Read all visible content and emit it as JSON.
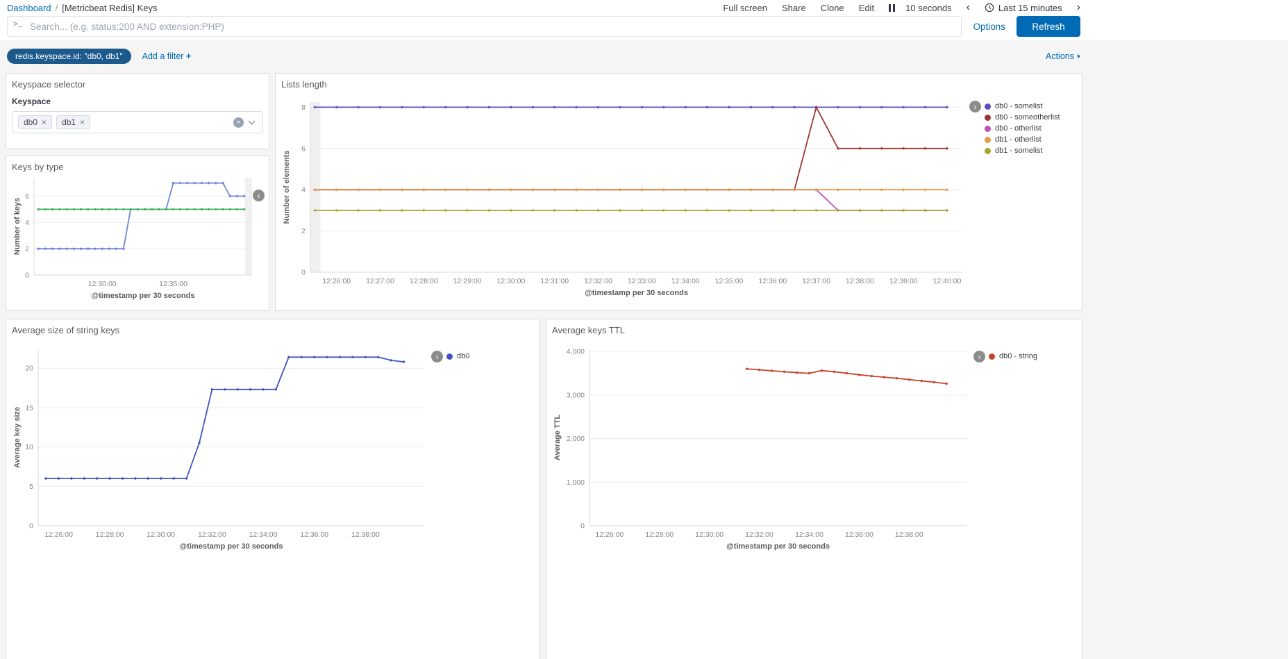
{
  "topnav": {
    "breadcrumb": {
      "root": "Dashboard",
      "separator": "/",
      "current": "[Metricbeat Redis] Keys"
    },
    "menu": {
      "full_screen": "Full screen",
      "share": "Share",
      "clone": "Clone",
      "edit": "Edit"
    },
    "refresh_interval": "10 seconds",
    "time_range": "Last 15 minutes"
  },
  "query_bar": {
    "placeholder": "Search... (e.g. status:200 AND extension:PHP)",
    "options": "Options",
    "refresh": "Refresh"
  },
  "filter_bar": {
    "pill": "redis.keyspace.id: \"db0, db1\"",
    "add_filter": "Add a filter",
    "plus": "+",
    "actions": "Actions"
  },
  "keyspace_panel": {
    "title": "Keyspace selector",
    "label": "Keyspace",
    "selected": [
      "db0",
      "db1"
    ]
  },
  "icons": {
    "prompt": ">_",
    "remove": "×",
    "chevron_left": "‹",
    "chevron_right": "›"
  },
  "colors": {
    "accent": "#006bb4",
    "filter_pill_bg": "#1d5a8c",
    "panel_border": "#dadada",
    "page_background": "#f5f5f5"
  },
  "chart_data": [
    {
      "id": "lists-length",
      "type": "line",
      "title": "Lists length",
      "xlabel": "@timestamp per 30 seconds",
      "ylabel": "Number of elements",
      "xlim": [
        25.4,
        40.35
      ],
      "ylim": [
        0,
        8.25
      ],
      "grid": true,
      "legend_position": "right",
      "yticks": [
        [
          0,
          "0"
        ],
        [
          2,
          "2"
        ],
        [
          4,
          "4"
        ],
        [
          6,
          "6"
        ],
        [
          8,
          "8"
        ]
      ],
      "xticks": [
        [
          26,
          "12:26:00"
        ],
        [
          27,
          "12:27:00"
        ],
        [
          28,
          "12:28:00"
        ],
        [
          29,
          "12:29:00"
        ],
        [
          30,
          "12:30:00"
        ],
        [
          31,
          "12:31:00"
        ],
        [
          32,
          "12:32:00"
        ],
        [
          33,
          "12:33:00"
        ],
        [
          34,
          "12:34:00"
        ],
        [
          35,
          "12:35:00"
        ],
        [
          36,
          "12:36:00"
        ],
        [
          37,
          "12:37:00"
        ],
        [
          38,
          "12:38:00"
        ],
        [
          39,
          "12:39:00"
        ],
        [
          40,
          "12:40:00"
        ]
      ],
      "endzones": [
        [
          25.4,
          25.63
        ]
      ],
      "legend": [
        {
          "label": "db0 - somelist",
          "color": "#5a50c2"
        },
        {
          "label": "db0 - someotherlist",
          "color": "#9e3533"
        },
        {
          "label": "db0 - otherlist",
          "color": "#bc52bc"
        },
        {
          "label": "db1 - otherlist",
          "color": "#e89b45"
        },
        {
          "label": "db1 - somelist",
          "color": "#aaa32e"
        }
      ],
      "series": [
        {
          "name": "db0 - somelist",
          "color": "#5a50c2",
          "x_start": 25.5,
          "x_step": 0.5,
          "values": [
            8,
            8,
            8,
            8,
            8,
            8,
            8,
            8,
            8,
            8,
            8,
            8,
            8,
            8,
            8,
            8,
            8,
            8,
            8,
            8,
            8,
            8,
            8,
            8,
            8,
            8,
            8,
            8,
            8,
            8
          ]
        },
        {
          "name": "db0 - someotherlist",
          "color": "#9e3533",
          "x_start": 25.5,
          "x_step": 0.5,
          "values": [
            4,
            4,
            4,
            4,
            4,
            4,
            4,
            4,
            4,
            4,
            4,
            4,
            4,
            4,
            4,
            4,
            4,
            4,
            4,
            4,
            4,
            4,
            4,
            8,
            6,
            6,
            6,
            6,
            6,
            6
          ]
        },
        {
          "name": "db0 - otherlist",
          "color": "#bc52bc",
          "x_start": 25.5,
          "x_step": 0.5,
          "values": [
            4,
            4,
            4,
            4,
            4,
            4,
            4,
            4,
            4,
            4,
            4,
            4,
            4,
            4,
            4,
            4,
            4,
            4,
            4,
            4,
            4,
            4,
            4,
            4,
            3,
            3,
            3,
            3,
            3,
            3
          ]
        },
        {
          "name": "db1 - otherlist",
          "color": "#e89b45",
          "x_start": 25.5,
          "x_step": 0.5,
          "values": [
            4,
            4,
            4,
            4,
            4,
            4,
            4,
            4,
            4,
            4,
            4,
            4,
            4,
            4,
            4,
            4,
            4,
            4,
            4,
            4,
            4,
            4,
            4,
            4,
            4,
            4,
            4,
            4,
            4,
            4
          ]
        },
        {
          "name": "db1 - somelist",
          "color": "#aaa32e",
          "x_start": 25.5,
          "x_step": 0.5,
          "values": [
            3,
            3,
            3,
            3,
            3,
            3,
            3,
            3,
            3,
            3,
            3,
            3,
            3,
            3,
            3,
            3,
            3,
            3,
            3,
            3,
            3,
            3,
            3,
            3,
            3,
            3,
            3,
            3,
            3,
            3
          ]
        }
      ]
    },
    {
      "id": "keys-by-type",
      "type": "line",
      "title": "Keys by type",
      "xlabel": "@timestamp per 30 seconds",
      "ylabel": "Number of keys",
      "xlim": [
        25.2,
        40.55
      ],
      "ylim": [
        0,
        7.4
      ],
      "grid": true,
      "legend_collapsed": true,
      "yticks": [
        [
          0,
          "0"
        ],
        [
          2,
          "2"
        ],
        [
          4,
          "4"
        ],
        [
          6,
          "6"
        ]
      ],
      "xticks": [
        [
          30,
          "12:30:00"
        ],
        [
          35,
          "12:35:00"
        ]
      ],
      "endzones": [
        [
          40.05,
          40.55
        ]
      ],
      "legend": [],
      "series": [
        {
          "name": "",
          "color": "#6f87d8",
          "x_start": 25.5,
          "x_step": 0.5,
          "values": [
            2,
            2,
            2,
            2,
            2,
            2,
            2,
            2,
            2,
            2,
            2,
            2,
            2,
            5,
            5,
            5,
            5,
            5,
            5,
            7,
            7,
            7,
            7,
            7,
            7,
            7,
            7,
            6,
            6,
            6
          ]
        },
        {
          "name": "",
          "color": "#44b262",
          "x_start": 25.5,
          "x_step": 0.5,
          "values": [
            5,
            5,
            5,
            5,
            5,
            5,
            5,
            5,
            5,
            5,
            5,
            5,
            5,
            5,
            5,
            5,
            5,
            5,
            5,
            5,
            5,
            5,
            5,
            5,
            5,
            5,
            5,
            5,
            5,
            5
          ]
        }
      ]
    },
    {
      "id": "avg-string-size",
      "type": "line",
      "title": "Average size of string keys",
      "xlabel": "@timestamp per 30 seconds",
      "ylabel": "Average key size",
      "xlim": [
        25.2,
        40.3
      ],
      "ylim": [
        0,
        22.4
      ],
      "grid": true,
      "legend_position": "right",
      "yticks": [
        [
          0,
          "0"
        ],
        [
          5,
          "5"
        ],
        [
          10,
          "10"
        ],
        [
          15,
          "15"
        ],
        [
          20,
          "20"
        ]
      ],
      "xticks": [
        [
          26,
          "12:26:00"
        ],
        [
          28,
          "12:28:00"
        ],
        [
          30,
          "12:30:00"
        ],
        [
          32,
          "12:32:00"
        ],
        [
          34,
          "12:34:00"
        ],
        [
          36,
          "12:36:00"
        ],
        [
          38,
          "12:38:00"
        ]
      ],
      "endzones": [],
      "legend": [
        {
          "label": "db0",
          "color": "#4353c2"
        }
      ],
      "series": [
        {
          "name": "db0",
          "color": "#4353c2",
          "x_start": 25.5,
          "x_step": 0.5,
          "values": [
            6,
            6,
            6,
            6,
            6,
            6,
            6,
            6,
            6,
            6,
            6,
            6,
            10.5,
            17.3,
            17.3,
            17.3,
            17.3,
            17.3,
            17.3,
            21.4,
            21.4,
            21.4,
            21.4,
            21.4,
            21.4,
            21.4,
            21.4,
            21,
            20.8
          ]
        }
      ]
    },
    {
      "id": "avg-keys-ttl",
      "type": "line",
      "title": "Average keys TTL",
      "xlabel": "@timestamp per 30 seconds",
      "ylabel": "Average TTL",
      "xlim": [
        25.2,
        40.3
      ],
      "ylim": [
        0,
        4050
      ],
      "grid": true,
      "legend_position": "right",
      "yticks": [
        [
          0,
          "0"
        ],
        [
          1000,
          "1,000"
        ],
        [
          2000,
          "2,000"
        ],
        [
          3000,
          "3,000"
        ],
        [
          4000,
          "4,000"
        ]
      ],
      "xticks": [
        [
          26,
          "12:26:00"
        ],
        [
          28,
          "12:28:00"
        ],
        [
          30,
          "12:30:00"
        ],
        [
          32,
          "12:32:00"
        ],
        [
          34,
          "12:34:00"
        ],
        [
          36,
          "12:36:00"
        ],
        [
          38,
          "12:38:00"
        ]
      ],
      "endzones": [],
      "legend": [
        {
          "label": "db0 - string",
          "color": "#c9412f"
        }
      ],
      "series": [
        {
          "name": "db0 - string",
          "color": "#c9412f",
          "x_start": 31.5,
          "x_step": 0.5,
          "values": [
            3600,
            3580,
            3555,
            3535,
            3515,
            3500,
            3560,
            3535,
            3500,
            3465,
            3435,
            3410,
            3385,
            3355,
            3325,
            3295,
            3260
          ]
        }
      ]
    }
  ]
}
